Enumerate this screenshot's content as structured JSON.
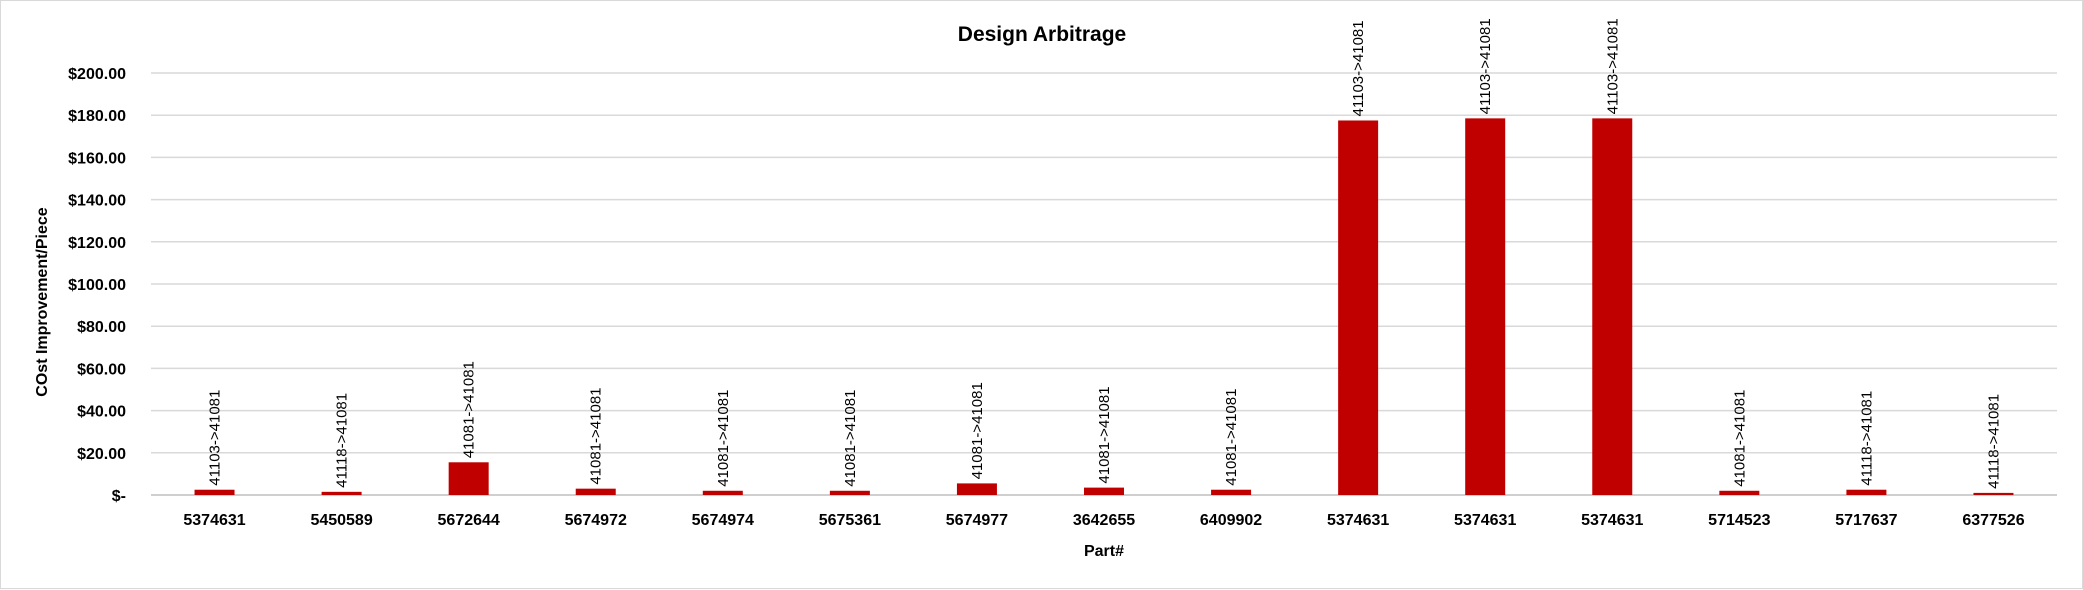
{
  "chart_data": {
    "type": "bar",
    "title": "Design Arbitrage",
    "xlabel": "Part#",
    "ylabel": "COst Improvement/Piece",
    "ylim": [
      0,
      200
    ],
    "y_ticks": [
      0,
      20,
      40,
      60,
      80,
      100,
      120,
      140,
      160,
      180,
      200
    ],
    "y_tick_labels": [
      "$-",
      "$20.00",
      "$40.00",
      "$60.00",
      "$80.00",
      "$100.00",
      "$120.00",
      "$140.00",
      "$160.00",
      "$180.00",
      "$200.00"
    ],
    "grid": true,
    "legend": "none",
    "bar_color": "#C00000",
    "categories": [
      "5374631",
      "5450589",
      "5672644",
      "5674972",
      "5674974",
      "5675361",
      "5674977",
      "3642655",
      "6409902",
      "5374631",
      "5374631",
      "5374631",
      "5714523",
      "5717637",
      "6377526"
    ],
    "values": [
      2.5,
      1.5,
      15.5,
      3.0,
      2.0,
      2.0,
      5.5,
      3.5,
      2.5,
      177.5,
      178.5,
      178.5,
      2.0,
      2.5,
      1.0
    ],
    "data_labels": [
      "41103->41081",
      "41118->41081",
      "41081->41081",
      "41081->41081",
      "41081->41081",
      "41081->41081",
      "41081->41081",
      "41081->41081",
      "41081->41081",
      "41103->41081",
      "41103->41081",
      "41103->41081",
      "41081->41081",
      "41118->41081",
      "41118->41081"
    ]
  }
}
